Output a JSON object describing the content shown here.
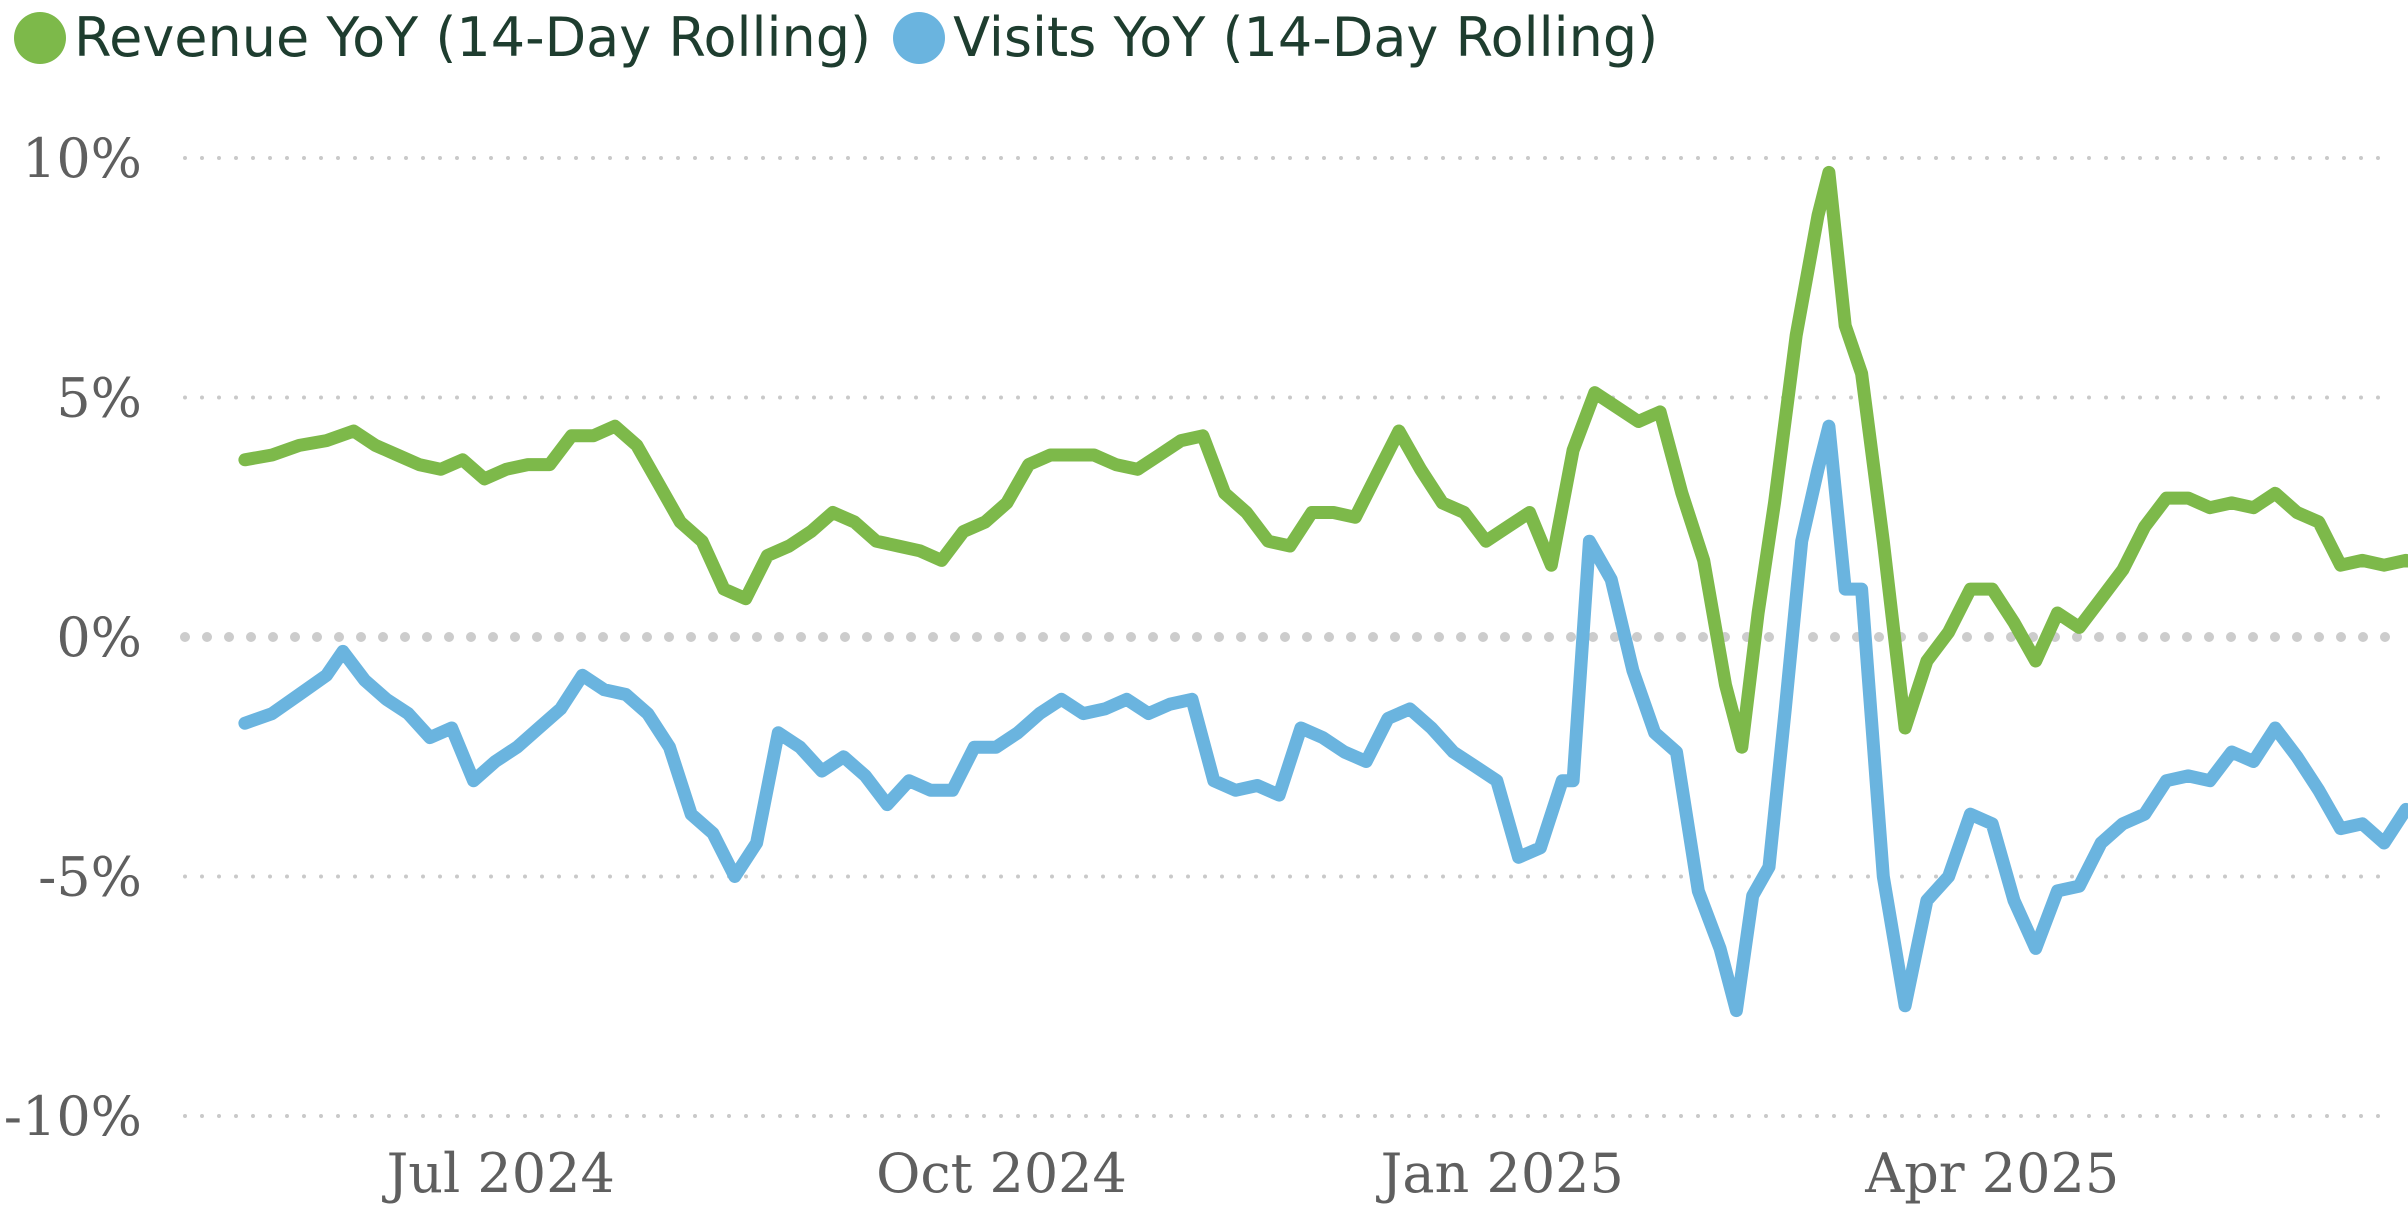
{
  "colors": {
    "revenue": "#7db94a",
    "visits": "#6ab4df",
    "grid": "#c9c9c9",
    "zero_line": "#cccccc",
    "tick_text": "#5f5f5f",
    "legend_text": "#1e3d2f"
  },
  "legend": {
    "revenue": "Revenue YoY (14-Day Rolling)",
    "visits": "Visits YoY (14-Day Rolling)"
  },
  "chart_data": {
    "type": "line",
    "title": "",
    "xlabel": "",
    "ylabel": "",
    "ylim": [
      -10,
      10
    ],
    "xlim": [
      "2024-05-04",
      "2025-06-14"
    ],
    "grid": "horizontal dotted",
    "legend_position": "top-left",
    "y_ticks": [
      {
        "value": 10,
        "label": "10%"
      },
      {
        "value": 5,
        "label": "5%"
      },
      {
        "value": 0,
        "label": "0%"
      },
      {
        "value": -5,
        "label": "-5%"
      },
      {
        "value": -10,
        "label": "-10%"
      }
    ],
    "x_ticks": [
      {
        "date": "2024-07-01",
        "label": "Jul 2024"
      },
      {
        "date": "2024-10-01",
        "label": "Oct 2024"
      },
      {
        "date": "2025-01-01",
        "label": "Jan 2025"
      },
      {
        "date": "2025-04-01",
        "label": "Apr 2025"
      }
    ],
    "series": [
      {
        "name": "Revenue YoY (14-Day Rolling)",
        "color": "#7db94a",
        "points": [
          [
            "2024-05-15",
            3.7
          ],
          [
            "2024-05-20",
            3.8
          ],
          [
            "2024-05-25",
            4.0
          ],
          [
            "2024-05-30",
            4.1
          ],
          [
            "2024-06-04",
            4.3
          ],
          [
            "2024-06-08",
            4.0
          ],
          [
            "2024-06-12",
            3.8
          ],
          [
            "2024-06-16",
            3.6
          ],
          [
            "2024-06-20",
            3.5
          ],
          [
            "2024-06-24",
            3.7
          ],
          [
            "2024-06-28",
            3.3
          ],
          [
            "2024-07-02",
            3.5
          ],
          [
            "2024-07-06",
            3.6
          ],
          [
            "2024-07-10",
            3.6
          ],
          [
            "2024-07-14",
            4.2
          ],
          [
            "2024-07-18",
            4.2
          ],
          [
            "2024-07-22",
            4.4
          ],
          [
            "2024-07-26",
            4.0
          ],
          [
            "2024-07-30",
            3.2
          ],
          [
            "2024-08-03",
            2.4
          ],
          [
            "2024-08-07",
            2.0
          ],
          [
            "2024-08-11",
            1.0
          ],
          [
            "2024-08-15",
            0.8
          ],
          [
            "2024-08-19",
            1.7
          ],
          [
            "2024-08-23",
            1.9
          ],
          [
            "2024-08-27",
            2.2
          ],
          [
            "2024-08-31",
            2.6
          ],
          [
            "2024-09-04",
            2.4
          ],
          [
            "2024-09-08",
            2.0
          ],
          [
            "2024-09-12",
            1.9
          ],
          [
            "2024-09-16",
            1.8
          ],
          [
            "2024-09-20",
            1.6
          ],
          [
            "2024-09-24",
            2.2
          ],
          [
            "2024-09-28",
            2.4
          ],
          [
            "2024-10-02",
            2.8
          ],
          [
            "2024-10-06",
            3.6
          ],
          [
            "2024-10-10",
            3.8
          ],
          [
            "2024-10-14",
            3.8
          ],
          [
            "2024-10-18",
            3.8
          ],
          [
            "2024-10-22",
            3.6
          ],
          [
            "2024-10-26",
            3.5
          ],
          [
            "2024-10-30",
            3.8
          ],
          [
            "2024-11-03",
            4.1
          ],
          [
            "2024-11-07",
            4.2
          ],
          [
            "2024-11-11",
            3.0
          ],
          [
            "2024-11-15",
            2.6
          ],
          [
            "2024-11-19",
            2.0
          ],
          [
            "2024-11-23",
            1.9
          ],
          [
            "2024-11-27",
            2.6
          ],
          [
            "2024-12-01",
            2.6
          ],
          [
            "2024-12-05",
            2.5
          ],
          [
            "2024-12-09",
            3.4
          ],
          [
            "2024-12-13",
            4.3
          ],
          [
            "2024-12-17",
            3.5
          ],
          [
            "2024-12-21",
            2.8
          ],
          [
            "2024-12-25",
            2.6
          ],
          [
            "2024-12-29",
            2.0
          ],
          [
            "2025-01-02",
            2.3
          ],
          [
            "2025-01-06",
            2.6
          ],
          [
            "2025-01-10",
            1.5
          ],
          [
            "2025-01-14",
            3.9
          ],
          [
            "2025-01-18",
            5.1
          ],
          [
            "2025-01-22",
            4.8
          ],
          [
            "2025-01-26",
            4.5
          ],
          [
            "2025-01-30",
            4.7
          ],
          [
            "2025-02-03",
            3.0
          ],
          [
            "2025-02-07",
            1.6
          ],
          [
            "2025-02-11",
            -1.0
          ],
          [
            "2025-02-14",
            -2.3
          ],
          [
            "2025-02-17",
            0.5
          ],
          [
            "2025-02-20",
            2.8
          ],
          [
            "2025-02-24",
            6.3
          ],
          [
            "2025-02-28",
            8.8
          ],
          [
            "2025-03-02",
            9.7
          ],
          [
            "2025-03-05",
            6.5
          ],
          [
            "2025-03-08",
            5.5
          ],
          [
            "2025-03-12",
            2.0
          ],
          [
            "2025-03-16",
            -1.9
          ],
          [
            "2025-03-20",
            -0.5
          ],
          [
            "2025-03-24",
            0.1
          ],
          [
            "2025-03-28",
            1.0
          ],
          [
            "2025-04-01",
            1.0
          ],
          [
            "2025-04-05",
            0.3
          ],
          [
            "2025-04-09",
            -0.5
          ],
          [
            "2025-04-13",
            0.5
          ],
          [
            "2025-04-17",
            0.2
          ],
          [
            "2025-04-21",
            0.8
          ],
          [
            "2025-04-25",
            1.4
          ],
          [
            "2025-04-29",
            2.3
          ],
          [
            "2025-05-03",
            2.9
          ],
          [
            "2025-05-07",
            2.9
          ],
          [
            "2025-05-11",
            2.7
          ],
          [
            "2025-05-15",
            2.8
          ],
          [
            "2025-05-19",
            2.7
          ],
          [
            "2025-05-23",
            3.0
          ],
          [
            "2025-05-27",
            2.6
          ],
          [
            "2025-05-31",
            2.4
          ],
          [
            "2025-06-04",
            1.5
          ],
          [
            "2025-06-08",
            1.6
          ],
          [
            "2025-06-12",
            1.5
          ],
          [
            "2025-06-16",
            1.6
          ],
          [
            "2025-06-20",
            1.5
          ],
          [
            "2025-06-24",
            1.3
          ],
          [
            "2025-06-28",
            1.2
          ]
        ]
      },
      {
        "name": "Visits YoY (14-Day Rolling)",
        "color": "#6ab4df",
        "points": [
          [
            "2024-05-15",
            -1.8
          ],
          [
            "2024-05-20",
            -1.6
          ],
          [
            "2024-05-25",
            -1.2
          ],
          [
            "2024-05-30",
            -0.8
          ],
          [
            "2024-06-02",
            -0.3
          ],
          [
            "2024-06-06",
            -0.9
          ],
          [
            "2024-06-10",
            -1.3
          ],
          [
            "2024-06-14",
            -1.6
          ],
          [
            "2024-06-18",
            -2.1
          ],
          [
            "2024-06-22",
            -1.9
          ],
          [
            "2024-06-26",
            -3.0
          ],
          [
            "2024-06-30",
            -2.6
          ],
          [
            "2024-07-04",
            -2.3
          ],
          [
            "2024-07-08",
            -1.9
          ],
          [
            "2024-07-12",
            -1.5
          ],
          [
            "2024-07-16",
            -0.8
          ],
          [
            "2024-07-20",
            -1.1
          ],
          [
            "2024-07-24",
            -1.2
          ],
          [
            "2024-07-28",
            -1.6
          ],
          [
            "2024-08-01",
            -2.3
          ],
          [
            "2024-08-05",
            -3.7
          ],
          [
            "2024-08-09",
            -4.1
          ],
          [
            "2024-08-13",
            -5.0
          ],
          [
            "2024-08-17",
            -4.3
          ],
          [
            "2024-08-21",
            -2.0
          ],
          [
            "2024-08-25",
            -2.3
          ],
          [
            "2024-08-29",
            -2.8
          ],
          [
            "2024-09-02",
            -2.5
          ],
          [
            "2024-09-06",
            -2.9
          ],
          [
            "2024-09-10",
            -3.5
          ],
          [
            "2024-09-14",
            -3.0
          ],
          [
            "2024-09-18",
            -3.2
          ],
          [
            "2024-09-22",
            -3.2
          ],
          [
            "2024-09-26",
            -2.3
          ],
          [
            "2024-09-30",
            -2.3
          ],
          [
            "2024-10-04",
            -2.0
          ],
          [
            "2024-10-08",
            -1.6
          ],
          [
            "2024-10-12",
            -1.3
          ],
          [
            "2024-10-16",
            -1.6
          ],
          [
            "2024-10-20",
            -1.5
          ],
          [
            "2024-10-24",
            -1.3
          ],
          [
            "2024-10-28",
            -1.6
          ],
          [
            "2024-11-01",
            -1.4
          ],
          [
            "2024-11-05",
            -1.3
          ],
          [
            "2024-11-09",
            -3.0
          ],
          [
            "2024-11-13",
            -3.2
          ],
          [
            "2024-11-17",
            -3.1
          ],
          [
            "2024-11-21",
            -3.3
          ],
          [
            "2024-11-25",
            -1.9
          ],
          [
            "2024-11-29",
            -2.1
          ],
          [
            "2024-12-03",
            -2.4
          ],
          [
            "2024-12-07",
            -2.6
          ],
          [
            "2024-12-11",
            -1.7
          ],
          [
            "2024-12-15",
            -1.5
          ],
          [
            "2024-12-19",
            -1.9
          ],
          [
            "2024-12-23",
            -2.4
          ],
          [
            "2024-12-27",
            -2.7
          ],
          [
            "2024-12-31",
            -3.0
          ],
          [
            "2025-01-04",
            -4.6
          ],
          [
            "2025-01-08",
            -4.4
          ],
          [
            "2025-01-12",
            -3.0
          ],
          [
            "2025-01-14",
            -3.0
          ],
          [
            "2025-01-17",
            2.0
          ],
          [
            "2025-01-21",
            1.2
          ],
          [
            "2025-01-25",
            -0.7
          ],
          [
            "2025-01-29",
            -2.0
          ],
          [
            "2025-02-02",
            -2.4
          ],
          [
            "2025-02-06",
            -5.3
          ],
          [
            "2025-02-10",
            -6.5
          ],
          [
            "2025-02-13",
            -7.8
          ],
          [
            "2025-02-16",
            -5.4
          ],
          [
            "2025-02-19",
            -4.8
          ],
          [
            "2025-02-22",
            -1.5
          ],
          [
            "2025-02-25",
            2.0
          ],
          [
            "2025-02-28",
            3.5
          ],
          [
            "2025-03-02",
            4.4
          ],
          [
            "2025-03-05",
            1.0
          ],
          [
            "2025-03-08",
            1.0
          ],
          [
            "2025-03-12",
            -5.0
          ],
          [
            "2025-03-16",
            -7.7
          ],
          [
            "2025-03-20",
            -5.5
          ],
          [
            "2025-03-24",
            -5.0
          ],
          [
            "2025-03-28",
            -3.7
          ],
          [
            "2025-04-01",
            -3.9
          ],
          [
            "2025-04-05",
            -5.5
          ],
          [
            "2025-04-09",
            -6.5
          ],
          [
            "2025-04-13",
            -5.3
          ],
          [
            "2025-04-17",
            -5.2
          ],
          [
            "2025-04-21",
            -4.3
          ],
          [
            "2025-04-25",
            -3.9
          ],
          [
            "2025-04-29",
            -3.7
          ],
          [
            "2025-05-03",
            -3.0
          ],
          [
            "2025-05-07",
            -2.9
          ],
          [
            "2025-05-11",
            -3.0
          ],
          [
            "2025-05-15",
            -2.4
          ],
          [
            "2025-05-19",
            -2.6
          ],
          [
            "2025-05-23",
            -1.9
          ],
          [
            "2025-05-27",
            -2.5
          ],
          [
            "2025-05-31",
            -3.2
          ],
          [
            "2025-06-04",
            -4.0
          ],
          [
            "2025-06-08",
            -3.9
          ],
          [
            "2025-06-12",
            -4.3
          ],
          [
            "2025-06-16",
            -3.6
          ],
          [
            "2025-06-20",
            -3.8
          ],
          [
            "2025-06-24",
            -3.5
          ],
          [
            "2025-06-28",
            -3.9
          ]
        ]
      }
    ]
  }
}
